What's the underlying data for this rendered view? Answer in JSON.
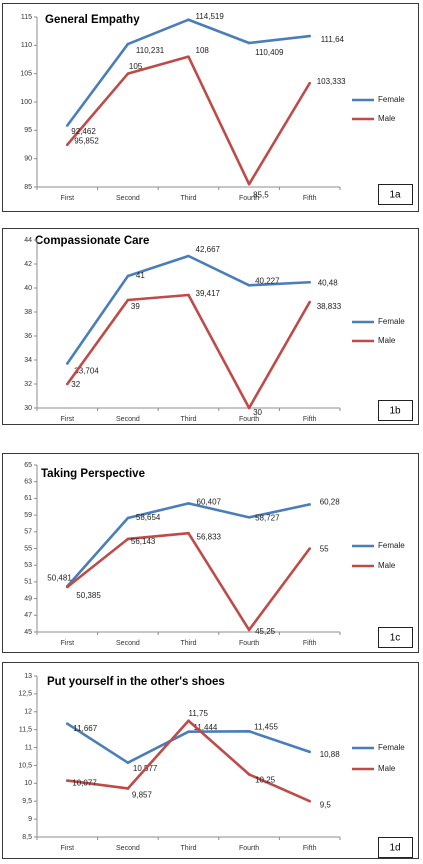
{
  "colors": {
    "female": "#4a7ebb",
    "male": "#be4b48"
  },
  "chart_data": [
    {
      "type": "line",
      "id": "1a",
      "title": "General Empathy",
      "categories": [
        "First",
        "Second",
        "Third",
        "Fourth",
        "Fifth"
      ],
      "ylim": [
        85,
        115
      ],
      "yticks": [
        85,
        90,
        95,
        100,
        105,
        110,
        115
      ],
      "ytick_labels": [
        "85",
        "90",
        "95",
        "100",
        "105",
        "110",
        "115"
      ],
      "series": [
        {
          "name": "Female",
          "values": [
            95.852,
            110.231,
            114.519,
            110.409,
            111.64
          ],
          "labels": [
            "95,852",
            "110,231",
            "114,519",
            "110,409",
            "111,64"
          ]
        },
        {
          "name": "Male",
          "values": [
            92.462,
            105,
            108,
            85.5,
            103.333
          ],
          "labels": [
            "92,462",
            "105",
            "108",
            "85,5",
            "103,333"
          ]
        }
      ],
      "legend": "right"
    },
    {
      "type": "line",
      "id": "1b",
      "title": "Compassionate Care",
      "categories": [
        "First",
        "Second",
        "Third",
        "Fourth",
        "Fifth"
      ],
      "ylim": [
        30,
        44
      ],
      "yticks": [
        30,
        32,
        34,
        36,
        38,
        40,
        42,
        44
      ],
      "ytick_labels": [
        "30",
        "32",
        "34",
        "36",
        "38",
        "40",
        "42",
        "44"
      ],
      "series": [
        {
          "name": "Female",
          "values": [
            33.704,
            41,
            42.667,
            40.227,
            40.48
          ],
          "labels": [
            "33,704",
            "41",
            "42,667",
            "40,227",
            "40,48"
          ]
        },
        {
          "name": "Male",
          "values": [
            32,
            39,
            39.417,
            30,
            38.833
          ],
          "labels": [
            "32",
            "39",
            "39,417",
            "30",
            "38,833"
          ]
        }
      ],
      "legend": "right"
    },
    {
      "type": "line",
      "id": "1c",
      "title": "Taking Perspective",
      "categories": [
        "First",
        "Second",
        "Third",
        "Fourth",
        "Fifth"
      ],
      "ylim": [
        45,
        65
      ],
      "yticks": [
        45,
        47,
        49,
        51,
        53,
        55,
        57,
        59,
        61,
        63,
        65
      ],
      "ytick_labels": [
        "45",
        "47",
        "49",
        "51",
        "53",
        "55",
        "57",
        "59",
        "61",
        "63",
        "65"
      ],
      "series": [
        {
          "name": "Female",
          "values": [
            50.481,
            58.654,
            60.407,
            58.727,
            60.28
          ],
          "labels": [
            "50,481",
            "58,654",
            "60,407",
            "58,727",
            "60,28"
          ]
        },
        {
          "name": "Male",
          "values": [
            50.385,
            56.143,
            56.833,
            45.25,
            55
          ],
          "labels": [
            "50,385",
            "56,143",
            "56,833",
            "45,25",
            "55"
          ]
        }
      ],
      "legend": "right"
    },
    {
      "type": "line",
      "id": "1d",
      "title": "Put yourself in the other's shoes",
      "categories": [
        "First",
        "Second",
        "Third",
        "Fourth",
        "Fifth"
      ],
      "ylim": [
        8.5,
        13
      ],
      "yticks": [
        8.5,
        9,
        9.5,
        10,
        10.5,
        11,
        11.5,
        12,
        12.5,
        13
      ],
      "ytick_labels": [
        "8,5",
        "9",
        "9,5",
        "10",
        "10,5",
        "11",
        "11,5",
        "12",
        "12,5",
        "13"
      ],
      "series": [
        {
          "name": "Female",
          "values": [
            11.667,
            10.577,
            11.444,
            11.455,
            10.88
          ],
          "labels": [
            "11,667",
            "10,577",
            "11,444",
            "11,455",
            "10,88"
          ]
        },
        {
          "name": "Male",
          "values": [
            10.077,
            9.857,
            11.75,
            10.25,
            9.5
          ],
          "labels": [
            "10,077",
            "9,857",
            "11,75",
            "10,25",
            "9,5"
          ]
        }
      ],
      "legend": "right"
    }
  ]
}
